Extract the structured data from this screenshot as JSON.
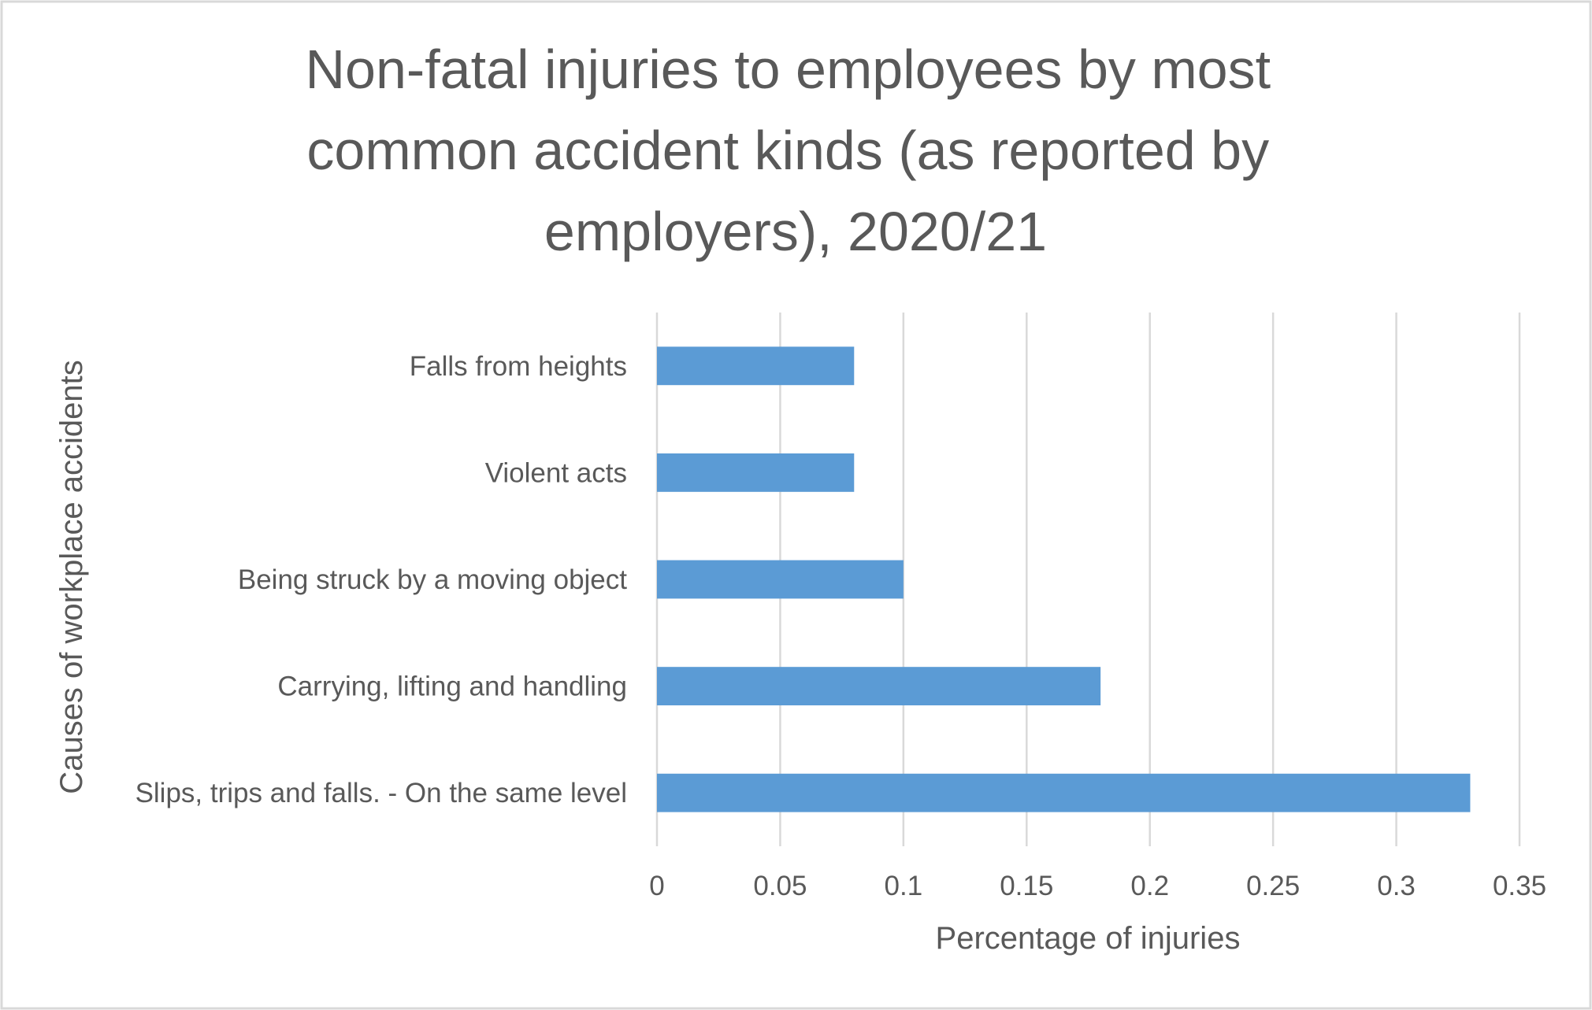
{
  "chart_data": {
    "type": "bar",
    "orientation": "horizontal",
    "title": "Non-fatal injuries to employees by most common accident kinds (as reported by employers), 2020/21",
    "title_lines": [
      "Non-fatal injuries to employees by most",
      "common accident kinds (as reported by",
      "employers), 2020/21"
    ],
    "xlabel": "Percentage of injuries",
    "ylabel": "Causes of workplace accidents",
    "categories": [
      "Slips, trips and falls. - On the same level",
      "Carrying, lifting and handling",
      "Being struck by a moving object",
      "Violent acts",
      "Falls from heights"
    ],
    "values": [
      0.33,
      0.18,
      0.1,
      0.08,
      0.08
    ],
    "xlim": [
      0,
      0.35
    ],
    "ticks": [
      "0",
      "0.05",
      "0.1",
      "0.15",
      "0.2",
      "0.25",
      "0.3",
      "0.35"
    ],
    "tick_values": [
      0,
      0.05,
      0.1,
      0.15,
      0.2,
      0.25,
      0.3,
      0.35
    ],
    "grid": "vertical",
    "legend": "none",
    "colors": {
      "bar": "#5b9bd5",
      "text": "#595959",
      "grid": "#d9d9d9",
      "border": "#d9d9d9"
    }
  }
}
